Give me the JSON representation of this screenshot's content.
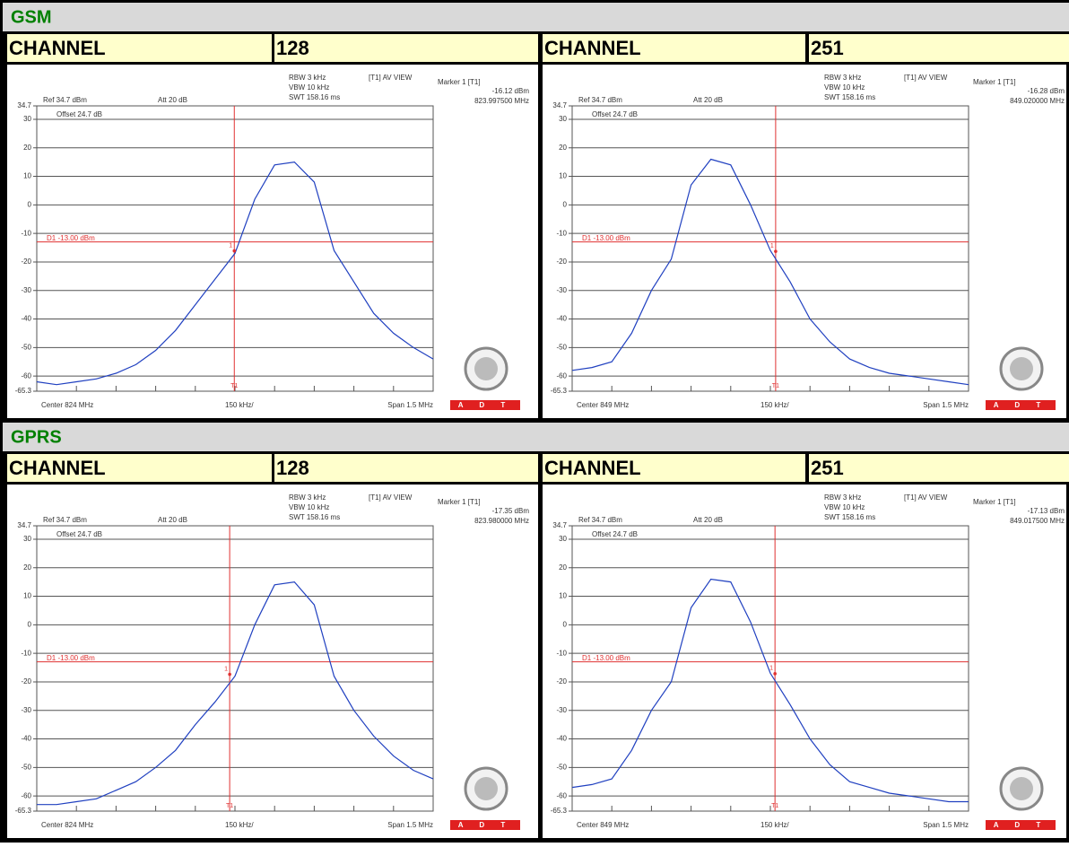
{
  "sections": [
    {
      "title": "GSM",
      "channels": [
        {
          "label": "CHANNEL",
          "number": "128",
          "plot": {
            "type": "line",
            "rbw": "RBW 3 kHz",
            "vbw": "VBW 10 kHz",
            "swt": "SWT 158.16 ms",
            "trace_mode": "[T1] AV VIEW",
            "marker_title": "Marker 1 [T1]",
            "ref": "Ref 34.7 dBm",
            "att": "Att 20 dB",
            "offset": "Offset 24.7 dB",
            "center": "Center 824 MHz",
            "div": "150 kHz/",
            "span": "Span 1.5 MHz",
            "logo": "A D T",
            "marker": {
              "x": 823.9975,
              "value": -16.12,
              "value_label": "-16.12 dBm",
              "x_label": "823.997500 MHz",
              "name": "T1",
              "label": "1"
            },
            "display_line": {
              "value": -13,
              "label": "D1 -13.00 dBm"
            },
            "xlim": [
              823.25,
              824.75
            ],
            "ylim": [
              -65.3,
              34.7
            ],
            "yticks": [
              34.7,
              30,
              20,
              10,
              0,
              -10,
              -20,
              -30,
              -40,
              -50,
              -60,
              -65.3
            ],
            "xticks": [
              823.25,
              823.4,
              823.55,
              823.7,
              823.85,
              824,
              824.15,
              824.3,
              824.45,
              824.6,
              824.75
            ],
            "x": [
              823.25,
              823.325,
              823.4,
              823.475,
              823.55,
              823.625,
              823.7,
              823.775,
              823.85,
              823.925,
              824,
              824.075,
              824.15,
              824.225,
              824.3,
              824.375,
              824.45,
              824.525,
              824.6,
              824.675,
              824.75
            ],
            "values": [
              -62,
              -63,
              -62,
              -61,
              -59,
              -56,
              -51,
              -44,
              -35,
              -26,
              -17,
              2,
              14,
              15,
              8,
              -16,
              -27,
              -38,
              -45,
              -50,
              -54
            ],
            "color": "#2040c0"
          }
        },
        {
          "label": "CHANNEL",
          "number": "251",
          "plot": {
            "type": "line",
            "rbw": "RBW 3 kHz",
            "vbw": "VBW 10 kHz",
            "swt": "SWT 158.16 ms",
            "trace_mode": "[T1] AV VIEW",
            "marker_title": "Marker 1 [T1]",
            "ref": "Ref 34.7 dBm",
            "att": "Att 20 dB",
            "offset": "Offset 24.7 dB",
            "center": "Center 849 MHz",
            "div": "150 kHz/",
            "span": "Span 1.5 MHz",
            "logo": "A D T",
            "marker": {
              "x": 849.02,
              "value": -16.28,
              "value_label": "-16.28 dBm",
              "x_label": "849.020000 MHz",
              "name": "T1",
              "label": "1"
            },
            "display_line": {
              "value": -13,
              "label": "D1 -13.00 dBm"
            },
            "xlim": [
              848.25,
              849.75
            ],
            "ylim": [
              -65.3,
              34.7
            ],
            "yticks": [
              34.7,
              30,
              20,
              10,
              0,
              -10,
              -20,
              -30,
              -40,
              -50,
              -60,
              -65.3
            ],
            "xticks": [
              848.25,
              848.4,
              848.55,
              848.7,
              848.85,
              849,
              849.15,
              849.3,
              849.45,
              849.6,
              849.75
            ],
            "x": [
              848.25,
              848.325,
              848.4,
              848.475,
              848.55,
              848.625,
              848.7,
              848.775,
              848.85,
              848.925,
              849,
              849.075,
              849.15,
              849.225,
              849.3,
              849.375,
              849.45,
              849.525,
              849.6,
              849.675,
              849.75
            ],
            "values": [
              -58,
              -57,
              -55,
              -45,
              -30,
              -19,
              7,
              16,
              14,
              0,
              -16,
              -27,
              -40,
              -48,
              -54,
              -57,
              -59,
              -60,
              -61,
              -62,
              -63
            ],
            "color": "#2040c0"
          }
        }
      ]
    },
    {
      "title": "GPRS",
      "channels": [
        {
          "label": "CHANNEL",
          "number": "128",
          "plot": {
            "type": "line",
            "rbw": "RBW 3 kHz",
            "vbw": "VBW 10 kHz",
            "swt": "SWT 158.16 ms",
            "trace_mode": "[T1] AV VIEW",
            "marker_title": "Marker 1 [T1]",
            "ref": "Ref 34.7 dBm",
            "att": "Att 20 dB",
            "offset": "Offset 24.7 dB",
            "center": "Center 824 MHz",
            "div": "150 kHz/",
            "span": "Span 1.5 MHz",
            "logo": "A D T",
            "marker": {
              "x": 823.98,
              "value": -17.35,
              "value_label": "-17.35 dBm",
              "x_label": "823.980000 MHz",
              "name": "T1",
              "label": "1"
            },
            "display_line": {
              "value": -13,
              "label": "D1 -13.00 dBm"
            },
            "xlim": [
              823.25,
              824.75
            ],
            "ylim": [
              -65.3,
              34.7
            ],
            "yticks": [
              34.7,
              30,
              20,
              10,
              0,
              -10,
              -20,
              -30,
              -40,
              -50,
              -60,
              -65.3
            ],
            "xticks": [
              823.25,
              823.4,
              823.55,
              823.7,
              823.85,
              824,
              824.15,
              824.3,
              824.45,
              824.6,
              824.75
            ],
            "x": [
              823.25,
              823.325,
              823.4,
              823.475,
              823.55,
              823.625,
              823.7,
              823.775,
              823.85,
              823.925,
              824,
              824.075,
              824.15,
              824.225,
              824.3,
              824.375,
              824.45,
              824.525,
              824.6,
              824.675,
              824.75
            ],
            "values": [
              -63,
              -63,
              -62,
              -61,
              -58,
              -55,
              -50,
              -44,
              -35,
              -27,
              -18,
              0,
              14,
              15,
              7,
              -18,
              -30,
              -39,
              -46,
              -51,
              -54
            ],
            "color": "#2040c0"
          }
        },
        {
          "label": "CHANNEL",
          "number": "251",
          "plot": {
            "type": "line",
            "rbw": "RBW 3 kHz",
            "vbw": "VBW 10 kHz",
            "swt": "SWT 158.16 ms",
            "trace_mode": "[T1] AV VIEW",
            "marker_title": "Marker 1 [T1]",
            "ref": "Ref 34.7 dBm",
            "att": "Att 20 dB",
            "offset": "Offset 24.7 dB",
            "center": "Center 849 MHz",
            "div": "150 kHz/",
            "span": "Span 1.5 MHz",
            "logo": "A D T",
            "marker": {
              "x": 849.0175,
              "value": -17.13,
              "value_label": "-17.13 dBm",
              "x_label": "849.017500 MHz",
              "name": "T1",
              "label": "1"
            },
            "display_line": {
              "value": -13,
              "label": "D1 -13.00 dBm"
            },
            "xlim": [
              848.25,
              849.75
            ],
            "ylim": [
              -65.3,
              34.7
            ],
            "yticks": [
              34.7,
              30,
              20,
              10,
              0,
              -10,
              -20,
              -30,
              -40,
              -50,
              -60,
              -65.3
            ],
            "xticks": [
              848.25,
              848.4,
              848.55,
              848.7,
              848.85,
              849,
              849.15,
              849.3,
              849.45,
              849.6,
              849.75
            ],
            "x": [
              848.25,
              848.325,
              848.4,
              848.475,
              848.55,
              848.625,
              848.7,
              848.775,
              848.85,
              848.925,
              849,
              849.075,
              849.15,
              849.225,
              849.3,
              849.375,
              849.45,
              849.525,
              849.6,
              849.675,
              849.75
            ],
            "values": [
              -57,
              -56,
              -54,
              -44,
              -30,
              -20,
              6,
              16,
              15,
              1,
              -17,
              -28,
              -40,
              -49,
              -55,
              -57,
              -59,
              -60,
              -61,
              -62,
              -62
            ],
            "color": "#2040c0"
          }
        }
      ]
    }
  ]
}
